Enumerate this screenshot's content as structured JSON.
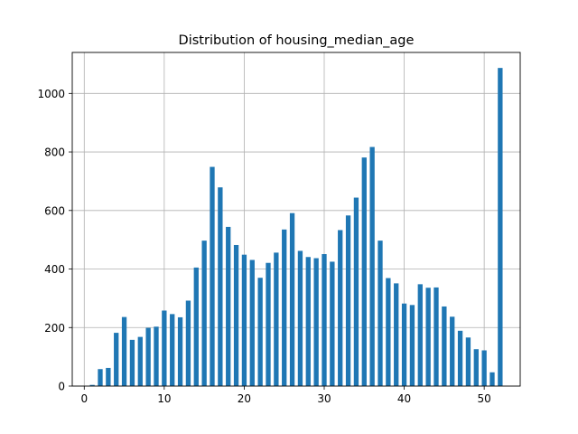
{
  "chart_data": {
    "type": "bar",
    "title": "Distribution of housing_median_age",
    "xlabel": "",
    "ylabel": "",
    "xlim": [
      -1.5,
      54.5
    ],
    "ylim": [
      0,
      1140
    ],
    "grid": true,
    "xticks": [
      0,
      10,
      20,
      30,
      40,
      50
    ],
    "yticks": [
      0,
      200,
      400,
      600,
      800,
      1000
    ],
    "bar_color": "#1f77b4",
    "bar_width": 0.6,
    "x": [
      1,
      2,
      3,
      4,
      5,
      6,
      7,
      8,
      9,
      10,
      11,
      12,
      13,
      14,
      15,
      16,
      17,
      18,
      19,
      20,
      21,
      22,
      23,
      24,
      25,
      26,
      27,
      28,
      29,
      30,
      31,
      32,
      33,
      34,
      35,
      36,
      37,
      38,
      39,
      40,
      41,
      42,
      43,
      44,
      45,
      46,
      47,
      48,
      49,
      50,
      51,
      52
    ],
    "values": [
      4,
      58,
      62,
      182,
      236,
      158,
      168,
      199,
      203,
      258,
      246,
      235,
      292,
      405,
      497,
      749,
      679,
      544,
      482,
      449,
      431,
      370,
      421,
      456,
      535,
      591,
      462,
      441,
      437,
      451,
      425,
      533,
      583,
      644,
      781,
      817,
      497,
      369,
      351,
      282,
      277,
      348,
      336,
      337,
      272,
      237,
      189,
      166,
      126,
      122,
      47,
      1087
    ]
  }
}
